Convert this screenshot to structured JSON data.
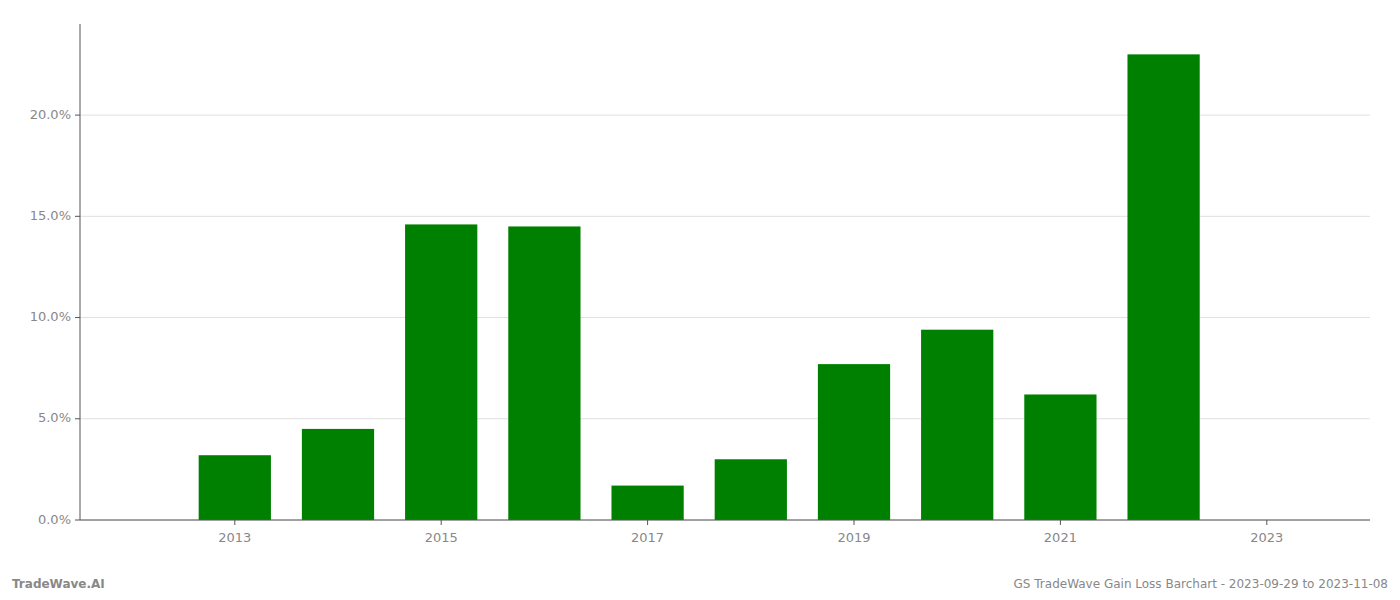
{
  "chart_data": {
    "type": "bar",
    "x": [
      2013,
      2014,
      2015,
      2016,
      2017,
      2018,
      2019,
      2020,
      2021,
      2022
    ],
    "values": [
      0.032,
      0.045,
      0.146,
      0.145,
      0.017,
      0.03,
      0.077,
      0.094,
      0.062,
      0.23
    ],
    "color": "#008000",
    "xlim": [
      2011.5,
      2024.0
    ],
    "xticks": [
      2013,
      2015,
      2017,
      2019,
      2021,
      2023
    ],
    "ylim": [
      0,
      0.245
    ],
    "yticks": [
      {
        "value": 0.0,
        "label": "0.0%"
      },
      {
        "value": 0.05,
        "label": "5.0%"
      },
      {
        "value": 0.1,
        "label": "10.0%"
      },
      {
        "value": 0.15,
        "label": "15.0%"
      },
      {
        "value": 0.2,
        "label": "20.0%"
      }
    ],
    "grid": true,
    "annotations": [
      "TradeWave.AI",
      "GS TradeWave Gain Loss Barchart - 2023-09-29 to 2023-11-08"
    ]
  }
}
